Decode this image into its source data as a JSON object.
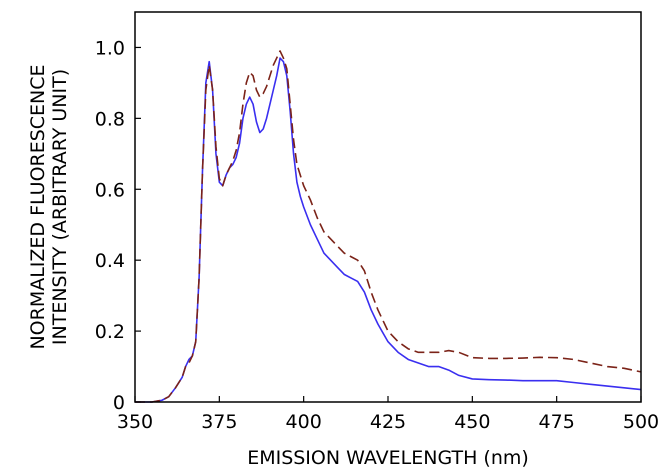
{
  "chart_data": {
    "type": "line",
    "title": "",
    "xlabel": "EMISSION WAVELENGTH (nm)",
    "ylabel_lines": [
      "NORMALIZED FLUORESCENCE",
      "INTENSITY (ARBITRARY UNIT)"
    ],
    "xlim": [
      350,
      500
    ],
    "ylim": [
      0,
      1.1
    ],
    "xticks": [
      350,
      375,
      400,
      425,
      450,
      475,
      500
    ],
    "xtick_labels": [
      "350",
      "375",
      "400",
      "425",
      "450",
      "475",
      "500"
    ],
    "yticks": [
      0,
      0.2,
      0.4,
      0.6,
      0.8,
      1.0
    ],
    "ytick_labels": [
      "0",
      "0.2",
      "0.4",
      "0.6",
      "0.8",
      "1.0"
    ],
    "grid": false,
    "legend": "none",
    "series": [
      {
        "color": "#3a2ff0",
        "dash": "solid",
        "x": [
          350,
          355,
          358,
          360,
          362,
          364,
          365,
          366,
          367,
          368,
          369,
          370,
          371,
          372,
          373,
          374,
          375,
          376,
          377,
          378,
          379,
          380,
          381,
          382,
          383,
          384,
          385,
          386,
          387,
          388,
          389,
          390,
          391,
          392,
          393,
          394,
          395,
          396,
          397,
          398,
          399,
          400,
          402,
          404,
          406,
          408,
          410,
          412,
          414,
          416,
          418,
          420,
          422,
          425,
          428,
          431,
          434,
          437,
          440,
          443,
          446,
          450,
          455,
          460,
          465,
          470,
          475,
          480,
          485,
          490,
          495,
          500
        ],
        "y": [
          0.0,
          0.0,
          0.005,
          0.015,
          0.04,
          0.07,
          0.1,
          0.12,
          0.13,
          0.17,
          0.35,
          0.65,
          0.9,
          0.96,
          0.88,
          0.7,
          0.62,
          0.61,
          0.64,
          0.66,
          0.67,
          0.69,
          0.73,
          0.8,
          0.84,
          0.86,
          0.84,
          0.79,
          0.76,
          0.77,
          0.8,
          0.84,
          0.88,
          0.92,
          0.97,
          0.96,
          0.92,
          0.82,
          0.7,
          0.62,
          0.58,
          0.55,
          0.5,
          0.46,
          0.42,
          0.4,
          0.38,
          0.36,
          0.35,
          0.34,
          0.31,
          0.26,
          0.22,
          0.17,
          0.14,
          0.12,
          0.11,
          0.1,
          0.1,
          0.09,
          0.075,
          0.065,
          0.063,
          0.062,
          0.06,
          0.06,
          0.06,
          0.055,
          0.05,
          0.045,
          0.04,
          0.035
        ]
      },
      {
        "color": "#7b2318",
        "dash": "dashed",
        "x": [
          350,
          355,
          358,
          360,
          362,
          364,
          365,
          366,
          367,
          368,
          369,
          370,
          371,
          372,
          373,
          374,
          375,
          376,
          377,
          378,
          379,
          380,
          381,
          382,
          383,
          384,
          385,
          386,
          387,
          388,
          389,
          390,
          391,
          392,
          393,
          394,
          395,
          396,
          397,
          398,
          399,
          400,
          402,
          404,
          406,
          408,
          410,
          412,
          414,
          416,
          418,
          420,
          422,
          425,
          428,
          431,
          434,
          437,
          440,
          443,
          446,
          450,
          455,
          460,
          465,
          470,
          475,
          480,
          485,
          490,
          495,
          500
        ],
        "y": [
          0.0,
          0.0,
          0.005,
          0.015,
          0.04,
          0.07,
          0.1,
          0.11,
          0.13,
          0.17,
          0.35,
          0.65,
          0.88,
          0.95,
          0.88,
          0.72,
          0.63,
          0.61,
          0.64,
          0.66,
          0.68,
          0.71,
          0.76,
          0.84,
          0.9,
          0.93,
          0.92,
          0.88,
          0.86,
          0.87,
          0.89,
          0.92,
          0.95,
          0.97,
          0.99,
          0.97,
          0.94,
          0.84,
          0.74,
          0.67,
          0.64,
          0.61,
          0.57,
          0.52,
          0.48,
          0.46,
          0.44,
          0.42,
          0.41,
          0.4,
          0.37,
          0.31,
          0.26,
          0.2,
          0.17,
          0.15,
          0.14,
          0.14,
          0.14,
          0.145,
          0.14,
          0.125,
          0.123,
          0.123,
          0.124,
          0.126,
          0.125,
          0.12,
          0.11,
          0.1,
          0.095,
          0.085
        ]
      }
    ]
  }
}
